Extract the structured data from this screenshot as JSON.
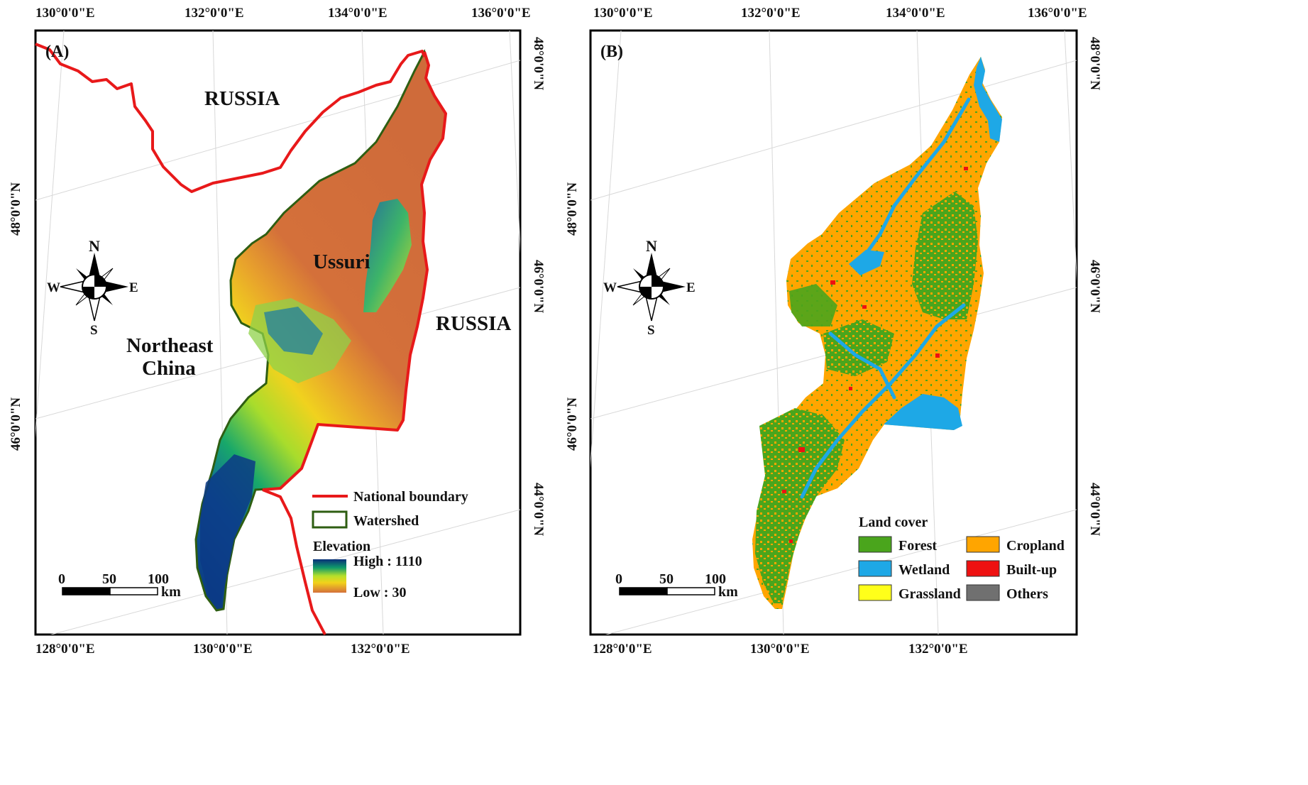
{
  "panel_a": {
    "label": "(A)",
    "top_ticks": [
      "130°0'0\"E",
      "132°0'0\"E",
      "134°0'0\"E",
      "136°0'0\"E"
    ],
    "bottom_ticks": [
      "128°0'0\"E",
      "130°0'0\"E",
      "132°0'0\"E"
    ],
    "left_ticks": [
      "48°0'0\"N",
      "46°0'0\"N"
    ],
    "right_ticks": [
      "48°0'0\"N",
      "46°0'0\"N",
      "44°0'0\"N"
    ],
    "places": {
      "russia_north": "RUSSIA",
      "russia_east": "RUSSIA",
      "ussuri": "Ussuri",
      "northeast": "Northeast",
      "china": "China"
    },
    "compass": {
      "n": "N",
      "s": "S",
      "e": "E",
      "w": "W"
    },
    "scale": {
      "t0": "0",
      "t1": "50",
      "t2": "100",
      "unit": "km"
    },
    "legend": {
      "national_boundary": "National boundary",
      "watershed": "Watershed",
      "elevation_title": "Elevation",
      "high": "High : 1110",
      "low": "Low : 30"
    },
    "colors": {
      "boundary": "#e8191a",
      "watershed": "#2e5e12",
      "low": "#d4703a",
      "high": "#0a2f7a"
    }
  },
  "panel_b": {
    "label": "(B)",
    "top_ticks": [
      "130°0'0\"E",
      "132°0'0\"E",
      "134°0'0\"E",
      "136°0'0\"E"
    ],
    "bottom_ticks": [
      "128°0'0\"E",
      "130°0'0\"E",
      "132°0'0\"E"
    ],
    "left_ticks": [
      "48°0'0\"N",
      "46°0'0\"N"
    ],
    "right_ticks": [
      "48°0'0\"N",
      "46°0'0\"N",
      "44°0'0\"N"
    ],
    "compass": {
      "n": "N",
      "s": "S",
      "e": "E",
      "w": "W"
    },
    "scale": {
      "t0": "0",
      "t1": "50",
      "t2": "100",
      "unit": "km"
    },
    "legend": {
      "title": "Land cover",
      "forest": "Forest",
      "wetland": "Wetland",
      "grassland": "Grassland",
      "cropland": "Cropland",
      "builtup": "Built-up",
      "others": "Others"
    },
    "colors": {
      "forest": "#4aa51c",
      "wetland": "#1ea8e6",
      "grassland": "#ffff1a",
      "cropland": "#ffa500",
      "builtup": "#ee1111",
      "others": "#707070"
    }
  }
}
